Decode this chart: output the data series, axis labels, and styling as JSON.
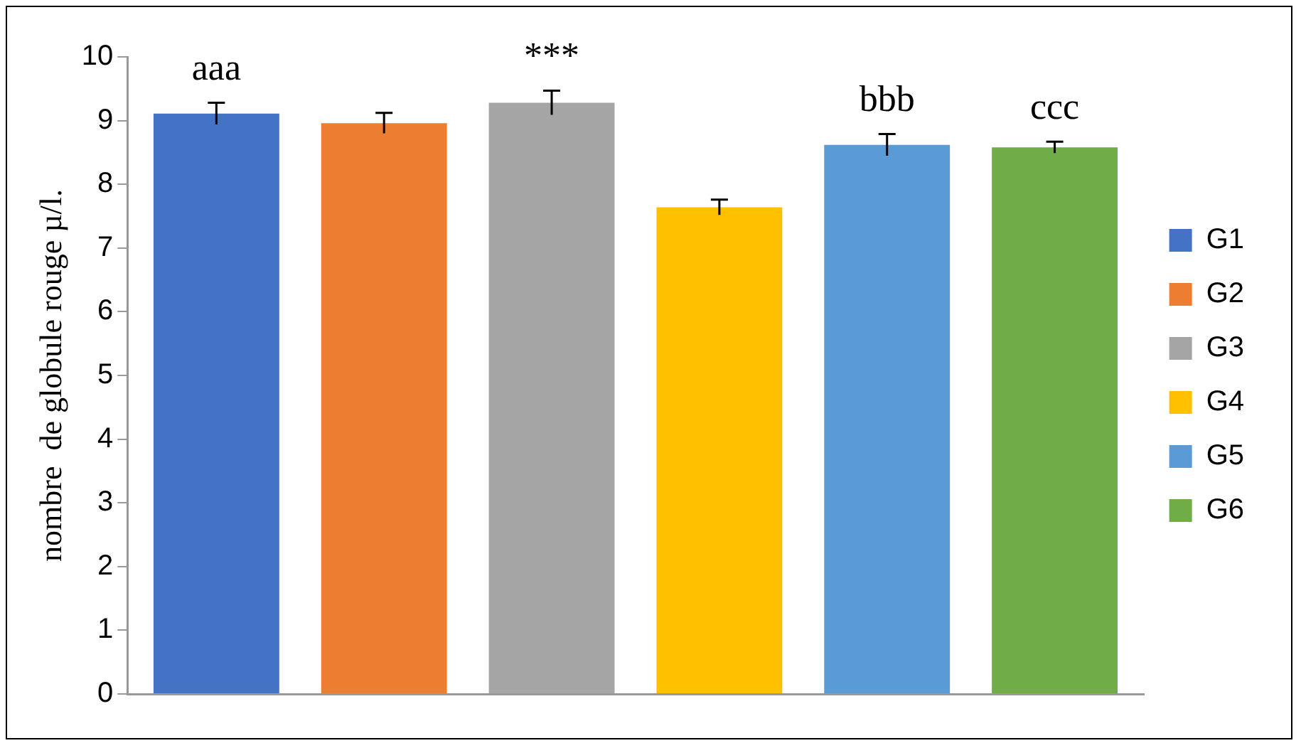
{
  "chart_data": {
    "type": "bar",
    "ylabel": "nombre  de globule rouge µ/l.",
    "categories": [
      null
    ],
    "series": [
      {
        "name": "G1",
        "color": "#4472c4",
        "values": [
          9.11
        ],
        "errors": [
          0.17
        ]
      },
      {
        "name": "G2",
        "color": "#ed7d31",
        "values": [
          8.96
        ],
        "errors": [
          0.16
        ]
      },
      {
        "name": "G3",
        "color": "#a5a5a5",
        "values": [
          9.28
        ],
        "errors": [
          0.19
        ]
      },
      {
        "name": "G4",
        "color": "#ffc000",
        "values": [
          7.64
        ],
        "errors": [
          0.12
        ]
      },
      {
        "name": "G5",
        "color": "#5b9bd5",
        "values": [
          8.62
        ],
        "errors": [
          0.17
        ]
      },
      {
        "name": "G6",
        "color": "#70ad47",
        "values": [
          8.58
        ],
        "errors": [
          0.09
        ]
      }
    ],
    "annotations": [
      "aaa",
      "***",
      "bbb",
      "ccc"
    ],
    "ylim": [
      0,
      10
    ],
    "yticks": [
      0,
      1,
      2,
      3,
      4,
      5,
      6,
      7,
      8,
      9,
      10
    ],
    "grid": false,
    "legend": "right",
    "tick_labels": "y"
  }
}
